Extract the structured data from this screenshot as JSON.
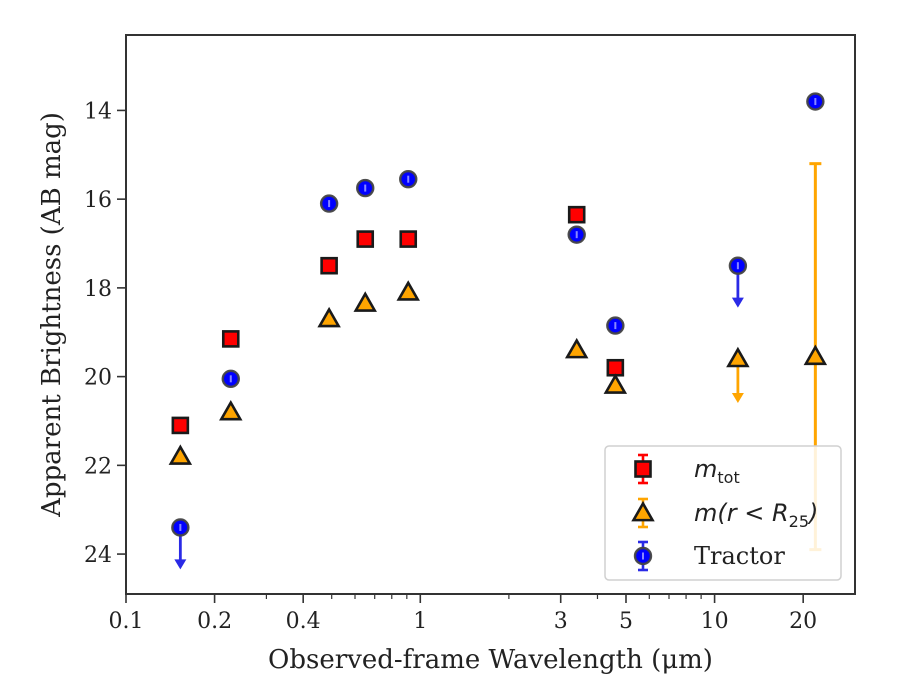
{
  "chart_data": {
    "type": "scatter",
    "xscale": "log",
    "xlim": [
      0.1,
      30
    ],
    "ylim": [
      24.9,
      12.3
    ],
    "y_inverted": true,
    "xlabel": "Observed-frame Wavelength (μm)",
    "ylabel": "Apparent Brightness (AB mag)",
    "x_ticks": [
      0.1,
      0.2,
      0.4,
      1,
      3,
      5,
      10,
      20
    ],
    "x_tick_labels": [
      "0.1",
      "0.2",
      "0.4",
      "1",
      "3",
      "5",
      "10",
      "20"
    ],
    "y_ticks": [
      14,
      16,
      18,
      20,
      22,
      24
    ],
    "y_tick_labels": [
      "14",
      "16",
      "18",
      "20",
      "22",
      "24"
    ],
    "grid": false,
    "legend_position": "bottom-right",
    "series": [
      {
        "name": "m_tot",
        "legend_main": "m",
        "legend_sub": "tot",
        "marker": "square",
        "color": "#ff0000",
        "points": [
          {
            "x": 0.153,
            "y": 21.1
          },
          {
            "x": 0.227,
            "y": 19.15
          },
          {
            "x": 0.49,
            "y": 17.5
          },
          {
            "x": 0.65,
            "y": 16.9
          },
          {
            "x": 0.91,
            "y": 16.9
          },
          {
            "x": 3.4,
            "y": 16.35
          },
          {
            "x": 4.6,
            "y": 19.8
          }
        ]
      },
      {
        "name": "m(r < R25)",
        "legend_main": "m(r < R",
        "legend_sub": "25",
        "legend_close": ")",
        "marker": "triangle",
        "color": "#ffa500",
        "points": [
          {
            "x": 0.153,
            "y": 21.8
          },
          {
            "x": 0.227,
            "y": 20.8
          },
          {
            "x": 0.49,
            "y": 18.7
          },
          {
            "x": 0.65,
            "y": 18.35
          },
          {
            "x": 0.91,
            "y": 18.1
          },
          {
            "x": 3.4,
            "y": 19.4
          },
          {
            "x": 4.6,
            "y": 20.2
          },
          {
            "x": 12.0,
            "y": 19.6,
            "upper_limit_to": 20.55
          },
          {
            "x": 22.0,
            "y": 19.55,
            "err_low": 15.2,
            "err_high": 23.9
          }
        ]
      },
      {
        "name": "Tractor",
        "legend_main": "Tractor",
        "marker": "circle",
        "color": "#0000ff",
        "points": [
          {
            "x": 0.153,
            "y": 23.4,
            "upper_limit_to": 24.3
          },
          {
            "x": 0.227,
            "y": 20.05
          },
          {
            "x": 0.49,
            "y": 16.1
          },
          {
            "x": 0.65,
            "y": 15.75
          },
          {
            "x": 0.91,
            "y": 15.55
          },
          {
            "x": 3.4,
            "y": 16.8
          },
          {
            "x": 4.6,
            "y": 18.85
          },
          {
            "x": 12.0,
            "y": 17.5,
            "upper_limit_to": 18.4
          },
          {
            "x": 22.0,
            "y": 13.8
          }
        ]
      }
    ]
  }
}
